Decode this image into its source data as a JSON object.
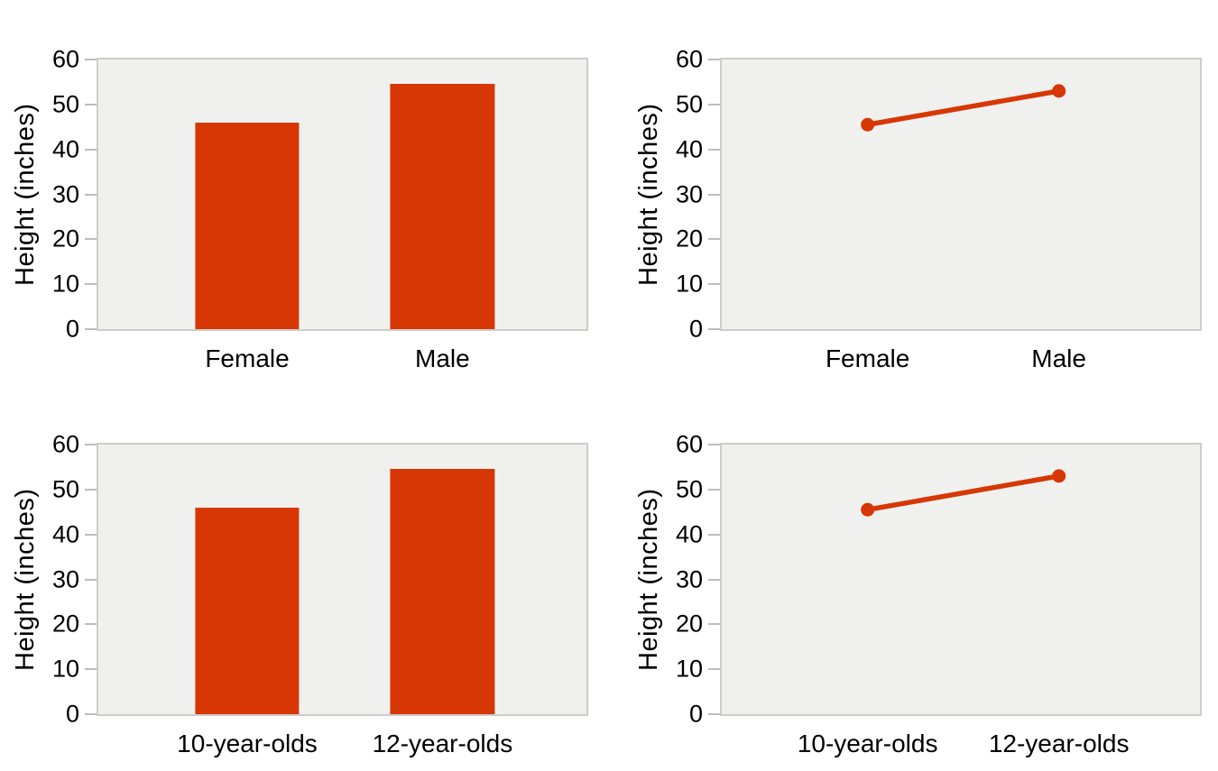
{
  "styles": {
    "accent": "#d63705",
    "plot_background": "#f0f0ee",
    "plot_border": "#cccccb",
    "tick_color": "#bdbdbb",
    "text_color": "#000000",
    "page_background": "#ffffff"
  },
  "chart_data": [
    {
      "type": "bar",
      "categories": [
        "Female",
        "Male"
      ],
      "values": [
        46,
        54.5
      ],
      "title": "",
      "xlabel": "",
      "ylabel": "Height (inches)",
      "ylim": [
        0,
        60
      ],
      "yticks": [
        0,
        10,
        20,
        30,
        40,
        50,
        60
      ],
      "grid": false,
      "legend": false
    },
    {
      "type": "line",
      "categories": [
        "Female",
        "Male"
      ],
      "values": [
        45.5,
        53
      ],
      "title": "",
      "xlabel": "",
      "ylabel": "Height (inches)",
      "ylim": [
        0,
        60
      ],
      "yticks": [
        0,
        10,
        20,
        30,
        40,
        50,
        60
      ],
      "grid": false,
      "legend": false
    },
    {
      "type": "bar",
      "categories": [
        "10-year-olds",
        "12-year-olds"
      ],
      "values": [
        46,
        54.5
      ],
      "title": "",
      "xlabel": "",
      "ylabel": "Height (inches)",
      "ylim": [
        0,
        60
      ],
      "yticks": [
        0,
        10,
        20,
        30,
        40,
        50,
        60
      ],
      "grid": false,
      "legend": false
    },
    {
      "type": "line",
      "categories": [
        "10-year-olds",
        "12-year-olds"
      ],
      "values": [
        45.5,
        53
      ],
      "title": "",
      "xlabel": "",
      "ylabel": "Height (inches)",
      "ylim": [
        0,
        60
      ],
      "yticks": [
        0,
        10,
        20,
        30,
        40,
        50,
        60
      ],
      "grid": false,
      "legend": false
    }
  ]
}
